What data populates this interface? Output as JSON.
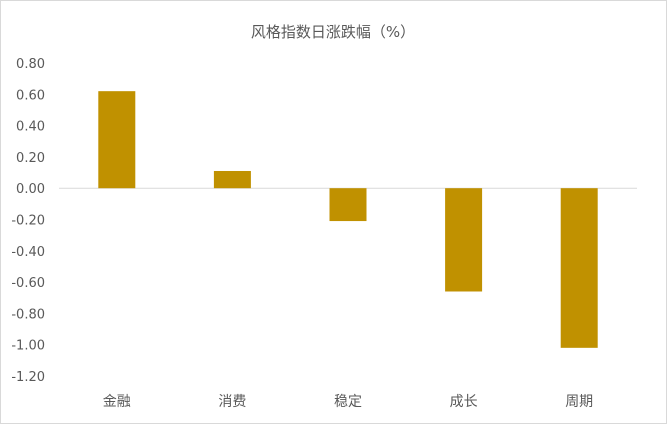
{
  "chart_data": {
    "type": "bar",
    "title": "风格指数日涨跌幅（%）",
    "xlabel": "",
    "ylabel": "",
    "categories": [
      "金融",
      "消费",
      "稳定",
      "成长",
      "周期"
    ],
    "values": [
      0.62,
      0.11,
      -0.21,
      -0.66,
      -1.02
    ],
    "ylim": [
      -1.2,
      0.8
    ],
    "yticks": [
      "0.80",
      "0.60",
      "0.40",
      "0.20",
      "0.00",
      "-0.20",
      "-0.40",
      "-0.60",
      "-0.80",
      "-1.00",
      "-1.20"
    ],
    "bar_color": "#C09100",
    "grid": false,
    "legend": "none"
  }
}
